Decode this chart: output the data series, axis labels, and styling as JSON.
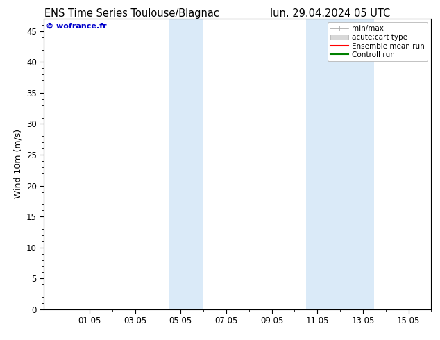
{
  "title_left": "ENS Time Series Toulouse/Blagnac",
  "title_right": "lun. 29.04.2024 05 UTC",
  "ylabel": "Wind 10m (m/s)",
  "watermark": "© wofrance.fr",
  "xmin": 29.0,
  "xmax": 46.0,
  "ymin": 0,
  "ymax": 47,
  "yticks": [
    0,
    5,
    10,
    15,
    20,
    25,
    30,
    35,
    40,
    45
  ],
  "xtick_labels": [
    "01.05",
    "03.05",
    "05.05",
    "07.05",
    "09.05",
    "11.05",
    "13.05",
    "15.05"
  ],
  "xtick_positions": [
    31,
    33,
    35,
    37,
    39,
    41,
    43,
    45
  ],
  "shaded_bands": [
    {
      "xstart": 34.5,
      "xend": 36.0,
      "color": "#daeaf8"
    },
    {
      "xstart": 40.5,
      "xend": 42.0,
      "color": "#daeaf8"
    },
    {
      "xstart": 42.0,
      "xend": 43.5,
      "color": "#daeaf8"
    }
  ],
  "legend_labels": [
    "min/max",
    "acute;cart type",
    "Ensemble mean run",
    "Controll run"
  ],
  "legend_colors": [
    "#aaaaaa",
    "#cccccc",
    "#ff0000",
    "#008000"
  ],
  "bg_color": "#ffffff",
  "plot_bg_color": "#ffffff",
  "title_fontsize": 10.5,
  "ylabel_fontsize": 9,
  "tick_fontsize": 8.5,
  "watermark_fontsize": 8,
  "legend_fontsize": 7.5
}
